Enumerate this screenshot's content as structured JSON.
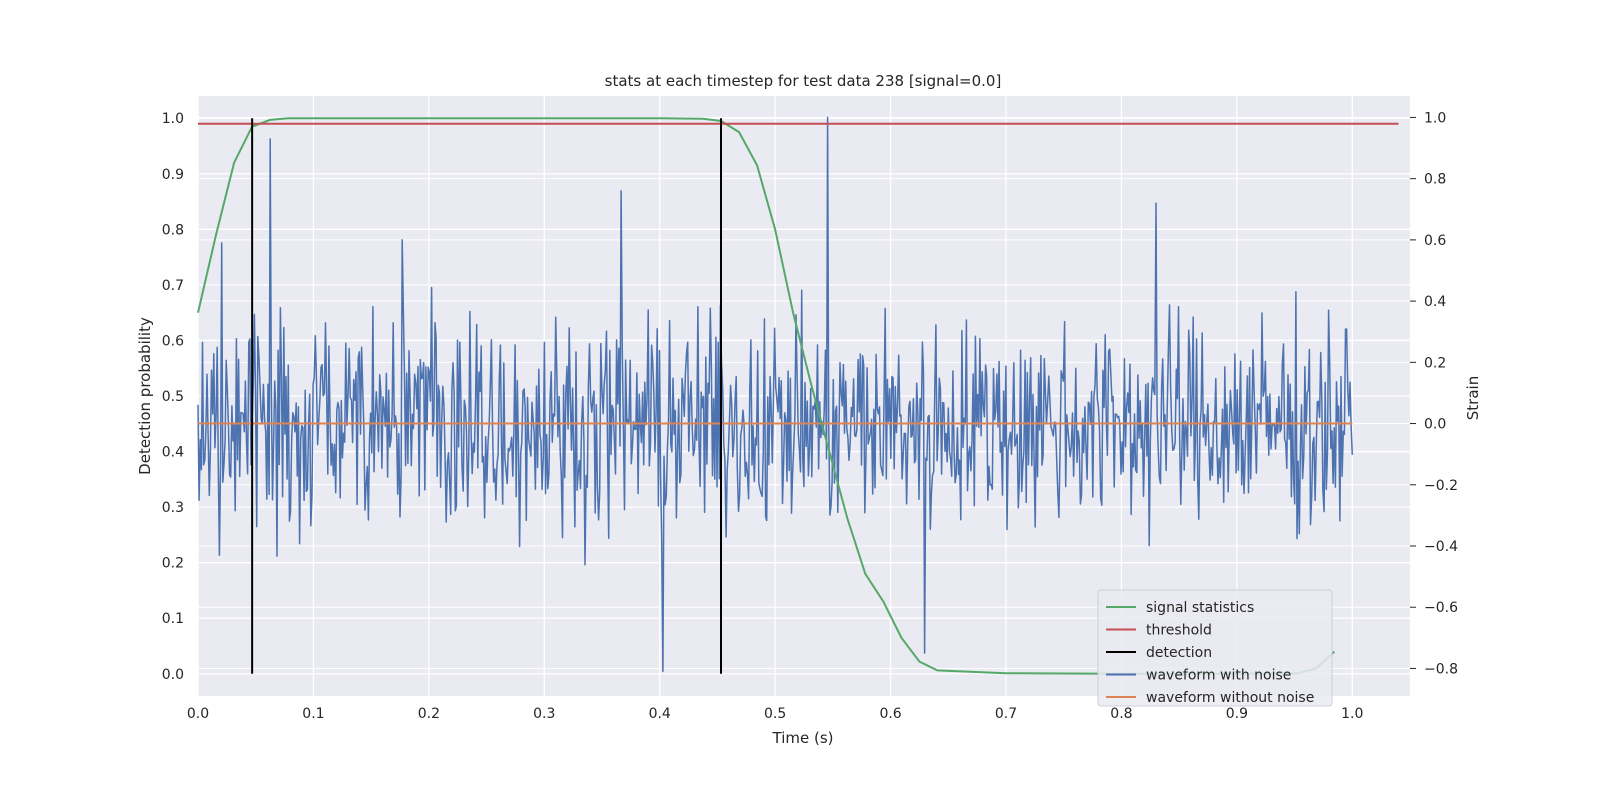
{
  "chart_data": {
    "type": "line",
    "title": "stats at each timestep for test data 238 [signal=0.0]",
    "xlabel": "Time (s)",
    "ylabel_left": "Detection probability",
    "ylabel_right": "Strain",
    "xlim": [
      0.0,
      1.05
    ],
    "ylim_left": [
      -0.04,
      1.04
    ],
    "ylim_right": [
      -0.89,
      1.07
    ],
    "xticks": [
      "0.0",
      "0.1",
      "0.2",
      "0.3",
      "0.4",
      "0.5",
      "0.6",
      "0.7",
      "0.8",
      "0.9",
      "1.0"
    ],
    "yticks_left": [
      "0.0",
      "0.1",
      "0.2",
      "0.3",
      "0.4",
      "0.5",
      "0.6",
      "0.7",
      "0.8",
      "0.9",
      "1.0"
    ],
    "yticks_right": [
      "−0.8",
      "−0.6",
      "−0.4",
      "−0.2",
      "0.0",
      "0.2",
      "0.4",
      "0.6",
      "0.8",
      "1.0"
    ],
    "grid": true,
    "legend_position": "lower-right",
    "colors": {
      "signal_statistics": "#55a868",
      "threshold": "#c44e52",
      "detection": "#000000",
      "waveform_with_noise": "#4c72b0",
      "waveform_without_noise": "#dd8452",
      "plot_background": "#eaeaf2"
    },
    "series": [
      {
        "name": "signal statistics",
        "axis": "left",
        "x": [
          0.0,
          0.0156,
          0.0313,
          0.0469,
          0.0625,
          0.0781,
          0.1,
          0.2,
          0.3,
          0.4,
          0.4375,
          0.4531,
          0.4688,
          0.4844,
          0.5,
          0.5156,
          0.5313,
          0.5469,
          0.5625,
          0.5781,
          0.5938,
          0.6094,
          0.625,
          0.6406,
          0.7,
          0.8,
          0.9,
          0.9531,
          0.9688,
          0.9844
        ],
        "y": [
          0.65,
          0.79,
          0.92,
          0.985,
          0.997,
          1.0,
          1.0,
          1.0,
          1.0,
          1.0,
          0.999,
          0.995,
          0.975,
          0.915,
          0.8,
          0.65,
          0.52,
          0.4,
          0.28,
          0.18,
          0.13,
          0.065,
          0.022,
          0.006,
          0.001,
          0.0,
          0.0,
          0.001,
          0.01,
          0.04
        ]
      },
      {
        "name": "threshold",
        "axis": "left",
        "x": [
          0.0,
          1.04
        ],
        "y": [
          0.99,
          0.99
        ]
      },
      {
        "name": "detection",
        "axis": "left",
        "segments": [
          {
            "x": 0.0469,
            "y0": 0.0,
            "y1": 1.0
          },
          {
            "x": 0.4531,
            "y0": 0.0,
            "y1": 1.0
          }
        ]
      },
      {
        "name": "waveform with noise",
        "axis": "right",
        "x_start": 0.0,
        "x_end": 1.0,
        "peaks": [
          {
            "x": 0.021,
            "y": 0.59
          },
          {
            "x": 0.0625,
            "y": 0.93
          },
          {
            "x": 0.177,
            "y": 0.6
          },
          {
            "x": 0.367,
            "y": 0.76
          },
          {
            "x": 0.403,
            "y": -0.81
          },
          {
            "x": 0.545,
            "y": 1.0
          },
          {
            "x": 0.63,
            "y": -0.75
          },
          {
            "x": 0.83,
            "y": 0.72
          }
        ],
        "amplitude_typical": 0.3
      },
      {
        "name": "waveform without noise",
        "axis": "right",
        "x": [
          0.0,
          1.0
        ],
        "y": [
          0.0,
          0.0
        ]
      }
    ],
    "legend": [
      "signal statistics",
      "threshold",
      "detection",
      "waveform with noise",
      "waveform without noise"
    ]
  }
}
